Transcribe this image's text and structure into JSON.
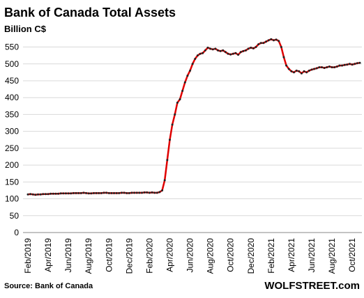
{
  "chart_data": {
    "type": "line",
    "title": "Bank of Canada Total Assets",
    "subtitle": "Billion C$",
    "source": "Source: Bank of Canada",
    "brand": "WOLFSTREET.com",
    "categories": [
      "Feb/2019",
      null,
      null,
      null,
      null,
      null,
      null,
      null,
      "Apr/2019",
      null,
      null,
      null,
      null,
      null,
      null,
      null,
      "Jun/2019",
      null,
      null,
      null,
      null,
      null,
      null,
      null,
      "Aug/2019",
      null,
      null,
      null,
      null,
      null,
      null,
      null,
      "Oct/2019",
      null,
      null,
      null,
      null,
      null,
      null,
      null,
      "Dec/2019",
      null,
      null,
      null,
      null,
      null,
      null,
      null,
      "Feb/2020",
      null,
      null,
      null,
      null,
      null,
      null,
      null,
      "Apr/2020",
      null,
      null,
      null,
      null,
      null,
      null,
      null,
      "Jun/2020",
      null,
      null,
      null,
      null,
      null,
      null,
      null,
      "Aug/2020",
      null,
      null,
      null,
      null,
      null,
      null,
      null,
      "Oct/2020",
      null,
      null,
      null,
      null,
      null,
      null,
      null,
      "Dec/2020",
      null,
      null,
      null,
      null,
      null,
      null,
      null,
      "Feb/2021",
      null,
      null,
      null,
      null,
      null,
      null,
      null,
      "Apr/2021",
      null,
      null,
      null,
      null,
      null,
      null,
      null,
      "Jun/2021",
      null,
      null,
      null,
      null,
      null,
      null,
      null,
      "Aug/2021",
      null,
      null,
      null,
      null,
      null,
      null,
      null,
      "Oct/2021",
      null,
      null,
      null
    ],
    "series": [
      {
        "color": "#e00000",
        "marker_color": "#222222",
        "values": [
          113,
          114,
          113,
          112,
          113,
          113,
          114,
          114,
          114,
          115,
          115,
          115,
          115,
          116,
          116,
          116,
          116,
          116,
          117,
          117,
          117,
          117,
          118,
          117,
          116,
          116,
          117,
          117,
          117,
          117,
          118,
          118,
          117,
          117,
          117,
          117,
          117,
          118,
          118,
          117,
          117,
          118,
          118,
          118,
          118,
          118,
          119,
          119,
          118,
          119,
          118,
          118,
          120,
          125,
          155,
          215,
          275,
          320,
          350,
          385,
          395,
          420,
          445,
          465,
          480,
          500,
          515,
          525,
          530,
          532,
          540,
          548,
          545,
          543,
          545,
          540,
          538,
          540,
          535,
          530,
          528,
          530,
          532,
          527,
          535,
          538,
          540,
          545,
          548,
          546,
          550,
          558,
          562,
          562,
          566,
          570,
          573,
          570,
          572,
          568,
          550,
          520,
          495,
          485,
          478,
          475,
          480,
          478,
          472,
          478,
          475,
          480,
          483,
          485,
          487,
          490,
          490,
          488,
          490,
          492,
          490,
          490,
          492,
          495,
          495,
          497,
          498,
          500,
          498,
          500,
          502,
          503
        ]
      }
    ],
    "ylim": [
      0,
      580
    ],
    "yticks": [
      0,
      50,
      100,
      150,
      200,
      250,
      300,
      350,
      400,
      450,
      500,
      550
    ],
    "grid": true
  }
}
